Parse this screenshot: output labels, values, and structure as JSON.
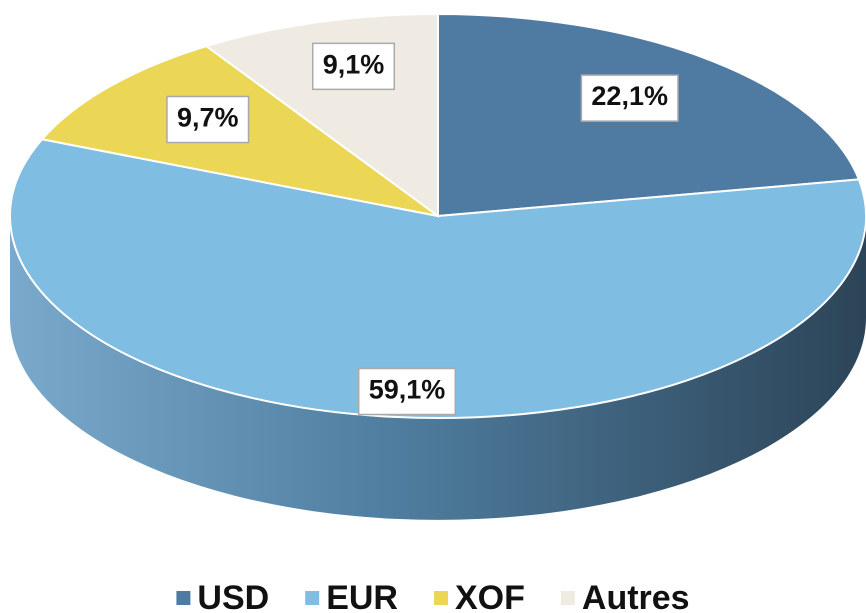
{
  "chart_data": {
    "type": "pie",
    "categories": [
      "USD",
      "EUR",
      "XOF",
      "Autres"
    ],
    "values": [
      22.1,
      59.1,
      9.7,
      9.1
    ],
    "value_labels": [
      "22,1%",
      "59,1%",
      "9,7%",
      "9,1%"
    ],
    "colors": [
      "#4f7ba3",
      "#80bde2",
      "#ebd655",
      "#efebe2"
    ],
    "legend": "bottom"
  }
}
